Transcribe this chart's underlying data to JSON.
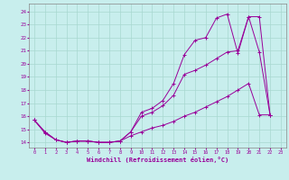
{
  "xlabel": "Windchill (Refroidissement éolien,°C)",
  "background_color": "#c8eeed",
  "grid_color": "#a8d8d0",
  "line_color": "#990099",
  "x_ticks": [
    0,
    1,
    2,
    3,
    4,
    5,
    6,
    7,
    8,
    9,
    10,
    11,
    12,
    13,
    14,
    15,
    16,
    17,
    18,
    19,
    20,
    21,
    22,
    23
  ],
  "y_ticks": [
    14,
    15,
    16,
    17,
    18,
    19,
    20,
    21,
    22,
    23,
    24
  ],
  "ylim": [
    13.6,
    24.6
  ],
  "xlim": [
    -0.5,
    23.5
  ],
  "series1_x": [
    0,
    1,
    2,
    3,
    4,
    5,
    6,
    7,
    8,
    9,
    10,
    11,
    12,
    13,
    14,
    15,
    16,
    17,
    18,
    19,
    20,
    21,
    22
  ],
  "series1_y": [
    15.7,
    14.8,
    14.2,
    14.0,
    14.1,
    14.1,
    14.0,
    14.0,
    14.1,
    14.8,
    16.3,
    16.6,
    17.2,
    18.5,
    20.7,
    21.8,
    22.0,
    23.5,
    23.8,
    20.8,
    23.6,
    23.6,
    16.1
  ],
  "series2_x": [
    0,
    1,
    2,
    3,
    4,
    5,
    6,
    7,
    8,
    9,
    10,
    11,
    12,
    13,
    14,
    15,
    16,
    17,
    18,
    19,
    20,
    21,
    22
  ],
  "series2_y": [
    15.7,
    14.8,
    14.2,
    14.0,
    14.1,
    14.1,
    14.0,
    14.0,
    14.1,
    14.8,
    16.0,
    16.3,
    16.8,
    17.6,
    19.2,
    19.5,
    19.9,
    20.4,
    20.9,
    21.0,
    23.6,
    20.9,
    16.1
  ],
  "series3_x": [
    0,
    1,
    2,
    3,
    4,
    5,
    6,
    7,
    8,
    9,
    10,
    11,
    12,
    13,
    14,
    15,
    16,
    17,
    18,
    19,
    20,
    21,
    22
  ],
  "series3_y": [
    15.7,
    14.7,
    14.2,
    14.0,
    14.1,
    14.1,
    14.0,
    14.0,
    14.1,
    14.5,
    14.8,
    15.1,
    15.3,
    15.6,
    16.0,
    16.3,
    16.7,
    17.1,
    17.5,
    18.0,
    18.5,
    16.1,
    16.1
  ]
}
